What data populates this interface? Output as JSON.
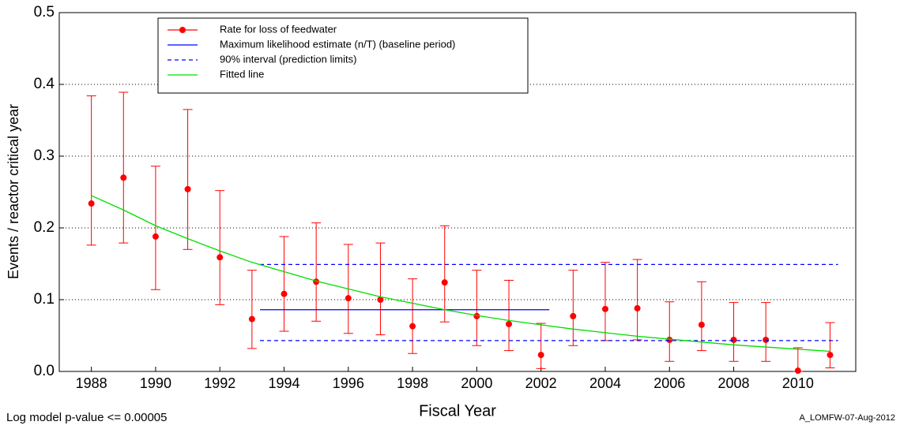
{
  "chart_data": {
    "type": "errorbar",
    "xlabel": "Fiscal Year",
    "ylabel": "Events / reactor critical year",
    "annotations": [
      "Log model p-value <= 0.00005",
      "A_LOMFW-07-Aug-2012"
    ],
    "x": [
      1988,
      1989,
      1990,
      1991,
      1992,
      1993,
      1994,
      1995,
      1996,
      1997,
      1998,
      1999,
      2000,
      2001,
      2002,
      2003,
      2004,
      2005,
      2006,
      2007,
      2008,
      2009,
      2010,
      2011
    ],
    "xlim": [
      1987,
      2011.8
    ],
    "xticks": [
      1988,
      1990,
      1992,
      1994,
      1996,
      1998,
      2000,
      2002,
      2004,
      2006,
      2008,
      2010
    ],
    "ylim": [
      0,
      0.5
    ],
    "yticks": [
      {
        "value": 0,
        "label": "0.0"
      },
      0.1,
      0.2,
      0.3,
      0.4,
      0.5
    ],
    "grid": true,
    "series": [
      {
        "name": "Rate for loss of feedwater",
        "color": "#ff0000",
        "style": "point-errorbar",
        "values": [
          0.234,
          0.27,
          0.188,
          0.254,
          0.159,
          0.073,
          0.108,
          0.125,
          0.102,
          0.1,
          0.063,
          0.124,
          0.077,
          0.066,
          0.023,
          0.077,
          0.087,
          0.088,
          0.044,
          0.065,
          0.044,
          0.044,
          0.001,
          0.023
        ],
        "lower": [
          0.176,
          0.179,
          0.114,
          0.17,
          0.093,
          0.032,
          0.056,
          0.07,
          0.053,
          0.051,
          0.025,
          0.069,
          0.036,
          0.029,
          0.004,
          0.036,
          0.043,
          0.044,
          0.014,
          0.029,
          0.014,
          0.014,
          0,
          0.005
        ],
        "upper": [
          0.384,
          0.389,
          0.286,
          0.365,
          0.252,
          0.141,
          0.188,
          0.207,
          0.177,
          0.179,
          0.129,
          0.203,
          0.141,
          0.127,
          0.067,
          0.141,
          0.152,
          0.156,
          0.097,
          0.125,
          0.096,
          0.096,
          0.033,
          0.068
        ]
      },
      {
        "name": "Maximum likelihood estimate (n/T) (baseline period)",
        "color": "#0000ff",
        "style": "solid",
        "x": [
          1993.25,
          2002.26
        ],
        "values": [
          0.086,
          0.086
        ]
      },
      {
        "name": "90% interval (prediction limits)",
        "color": "#0000ff",
        "style": "dashed",
        "x": [
          1993.25,
          2011.25
        ],
        "lower": [
          0.043,
          0.043
        ],
        "upper": [
          0.149,
          0.149
        ]
      },
      {
        "name": "Fitted line",
        "color": "#00dd00",
        "style": "solid",
        "values": [
          0.245,
          0.225,
          0.203,
          0.185,
          0.168,
          0.152,
          0.139,
          0.126,
          0.115,
          0.104,
          0.095,
          0.086,
          0.078,
          0.071,
          0.065,
          0.059,
          0.054,
          0.049,
          0.045,
          0.041,
          0.037,
          0.034,
          0.031,
          0.028
        ]
      }
    ]
  }
}
